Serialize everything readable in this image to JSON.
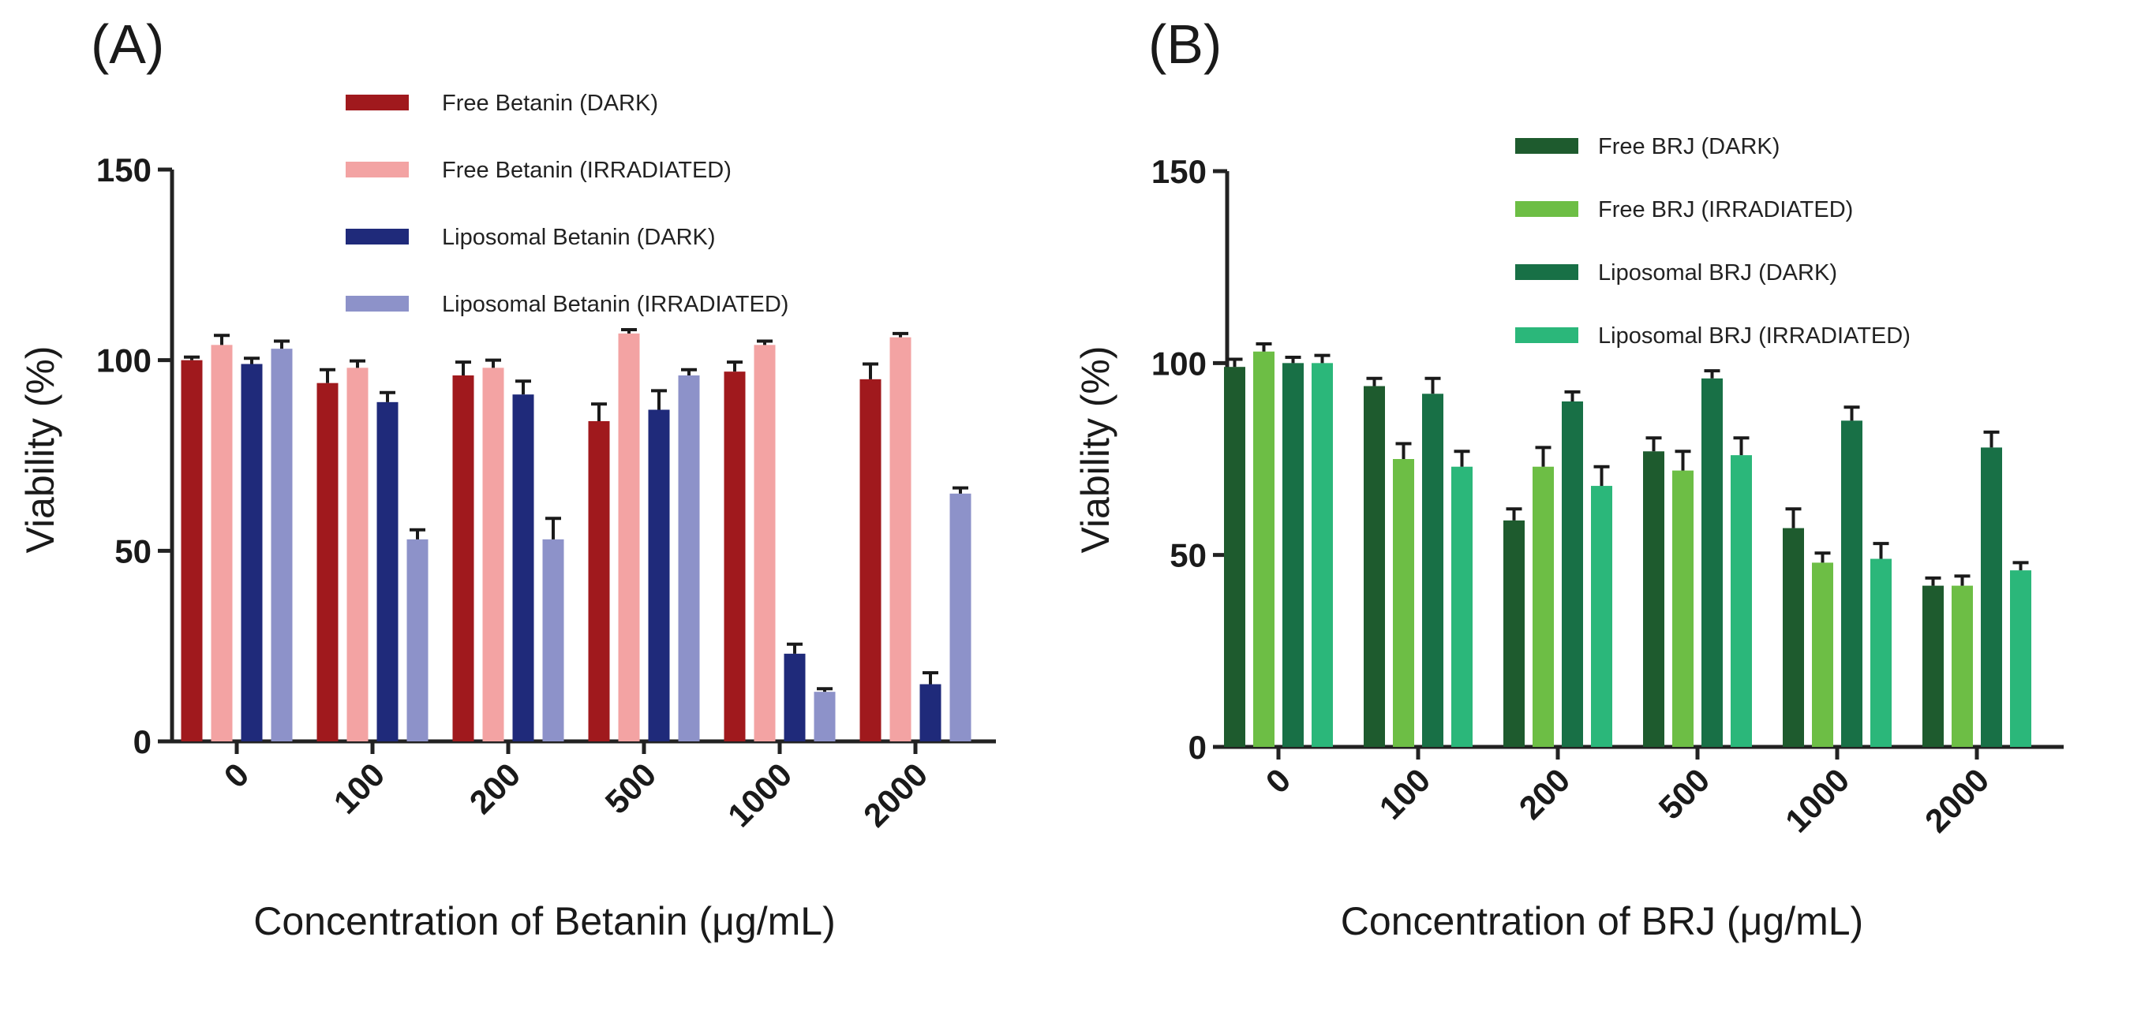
{
  "chart_data": [
    {
      "panel": "(A)",
      "type": "bar",
      "title": "",
      "xlabel": "Concentration of Betanin (μg/mL)",
      "ylabel": "Viability (%)",
      "ylim": [
        0,
        150
      ],
      "yticks": [
        0,
        50,
        100,
        150
      ],
      "categories": [
        "0",
        "100",
        "200",
        "500",
        "1000",
        "2000"
      ],
      "legend_position": "top-center",
      "series": [
        {
          "name": "Free Betanin (DARK)",
          "color": "#a0191d",
          "values": [
            100,
            94,
            96,
            84,
            97,
            95
          ],
          "errors": [
            0.8,
            3.5,
            3.5,
            4.5,
            2.5,
            4
          ]
        },
        {
          "name": "Free Betanin (IRRADIATED)",
          "color": "#f3a3a3",
          "values": [
            104,
            98,
            98,
            107,
            104,
            106
          ],
          "errors": [
            2.5,
            1.8,
            2,
            1,
            1,
            1
          ]
        },
        {
          "name": "Liposomal Betanin (DARK)",
          "color": "#1f2a7a",
          "values": [
            99,
            89,
            91,
            87,
            23,
            15
          ],
          "errors": [
            1.5,
            2.5,
            3.5,
            5,
            2.5,
            3
          ]
        },
        {
          "name": "Liposomal Betanin (IRRADIATED)",
          "color": "#8d92c9",
          "values": [
            103,
            53,
            53,
            96,
            13,
            65
          ],
          "errors": [
            2,
            2.5,
            5.5,
            1.5,
            0.8,
            1.5
          ]
        }
      ]
    },
    {
      "panel": "(B)",
      "type": "bar",
      "title": "",
      "xlabel": "Concentration of BRJ (μg/mL)",
      "ylabel": "Viability (%)",
      "ylim": [
        0,
        150
      ],
      "yticks": [
        0,
        50,
        100,
        150
      ],
      "categories": [
        "0",
        "100",
        "200",
        "500",
        "1000",
        "2000"
      ],
      "legend_position": "top-right",
      "series": [
        {
          "name": "Free BRJ (DARK)",
          "color": "#1e5b2e",
          "values": [
            99,
            94,
            59,
            77,
            57,
            42
          ],
          "errors": [
            2,
            2,
            3,
            3.5,
            5,
            2
          ]
        },
        {
          "name": "Free BRJ (IRRADIATED)",
          "color": "#6dbe45",
          "values": [
            103,
            75,
            73,
            72,
            48,
            42
          ],
          "errors": [
            2,
            4,
            5,
            5,
            2.5,
            2.5
          ]
        },
        {
          "name": "Liposomal BRJ (DARK)",
          "color": "#187046",
          "values": [
            100,
            92,
            90,
            96,
            85,
            78
          ],
          "errors": [
            1.5,
            4,
            2.5,
            2,
            3.5,
            4
          ]
        },
        {
          "name": "Liposomal BRJ (IRRADIATED)",
          "color": "#2bb77a",
          "values": [
            100,
            73,
            68,
            76,
            49,
            46
          ],
          "errors": [
            2,
            4,
            5,
            4.5,
            4,
            2
          ]
        }
      ]
    }
  ]
}
